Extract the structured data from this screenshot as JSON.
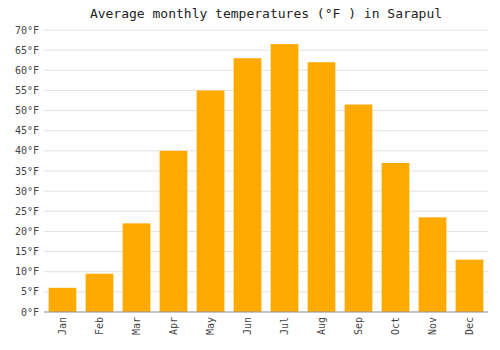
{
  "chart_data": {
    "type": "bar",
    "title": "Average monthly temperatures (°F ) in Sarapul",
    "categories": [
      "Jan",
      "Feb",
      "Mar",
      "Apr",
      "May",
      "Jun",
      "Jul",
      "Aug",
      "Sep",
      "Oct",
      "Nov",
      "Dec"
    ],
    "values": [
      6,
      9.5,
      22,
      40,
      55,
      63,
      66.5,
      62,
      51.5,
      37,
      23.5,
      13
    ],
    "color": "#FFAA00",
    "ylim": [
      0,
      70
    ],
    "yticks": [
      {
        "value": 0,
        "label": "0°F"
      },
      {
        "value": 5,
        "label": "5°F"
      },
      {
        "value": 10,
        "label": "10°F"
      },
      {
        "value": 15,
        "label": "15°F"
      },
      {
        "value": 20,
        "label": "20°F"
      },
      {
        "value": 25,
        "label": "25°F"
      },
      {
        "value": 30,
        "label": "30°F"
      },
      {
        "value": 35,
        "label": "35°F"
      },
      {
        "value": 40,
        "label": "40°F"
      },
      {
        "value": 45,
        "label": "45°F"
      },
      {
        "value": 50,
        "label": "50°F"
      },
      {
        "value": 55,
        "label": "55°F"
      },
      {
        "value": 60,
        "label": "60°F"
      },
      {
        "value": 65,
        "label": "65°F"
      },
      {
        "value": 70,
        "label": "70°F"
      }
    ],
    "grid": true
  }
}
